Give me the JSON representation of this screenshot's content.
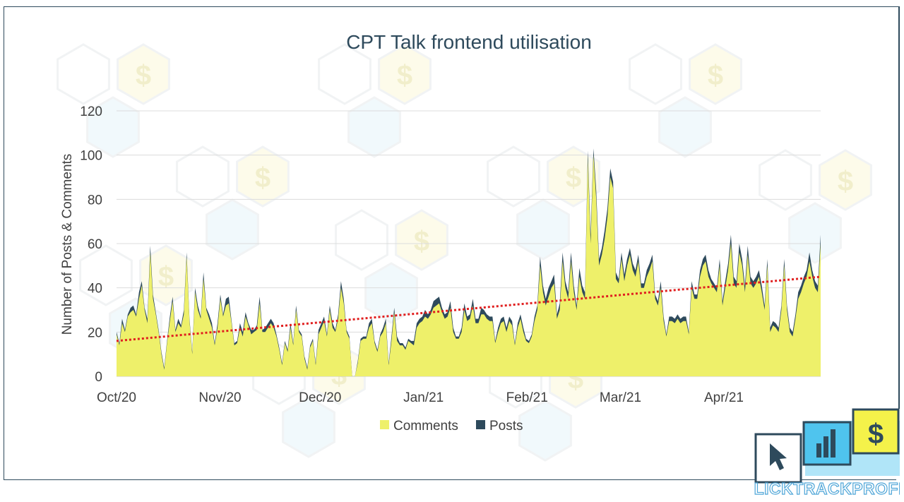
{
  "chart_data": {
    "type": "area",
    "title": "CPT Talk frontend utilisation",
    "ylabel": "Number of Posts & Comments",
    "xlabel": "",
    "ylim": [
      0,
      120
    ],
    "yticks": [
      0,
      20,
      40,
      60,
      80,
      100,
      120
    ],
    "xticks": [
      "Oct/20",
      "Nov/20",
      "Dec/20",
      "Jan/21",
      "Feb/21",
      "Mar/21",
      "Apr/21"
    ],
    "x_start": "2020-10-01",
    "x_end": "2021-04-30",
    "grid": true,
    "legend": "bottom",
    "stacked": true,
    "series": [
      {
        "name": "Comments",
        "color": "#eef06a",
        "values": [
          19,
          14,
          24,
          20,
          27,
          29,
          30,
          27,
          35,
          41,
          30,
          24,
          56,
          35,
          28,
          20,
          10,
          3,
          15,
          25,
          34,
          20,
          24,
          22,
          28,
          54,
          25,
          10,
          38,
          30,
          26,
          44,
          30,
          26,
          22,
          14,
          22,
          35,
          27,
          32,
          33,
          24,
          14,
          15,
          22,
          18,
          27,
          23,
          19,
          20,
          21,
          33,
          20,
          20,
          22,
          24,
          22,
          18,
          12,
          5,
          15,
          11,
          22,
          14,
          30,
          20,
          18,
          8,
          3,
          13,
          16,
          5,
          19,
          22,
          25,
          18,
          30,
          22,
          20,
          26,
          40,
          33,
          20,
          17,
          0,
          0,
          6,
          16,
          17,
          17,
          22,
          24,
          15,
          11,
          18,
          20,
          24,
          5,
          16,
          29,
          16,
          14,
          14,
          12,
          16,
          15,
          14,
          22,
          24,
          25,
          27,
          26,
          28,
          31,
          32,
          33,
          29,
          26,
          27,
          31,
          20,
          17,
          17,
          20,
          30,
          25,
          26,
          32,
          24,
          24,
          28,
          28,
          26,
          25,
          25,
          15,
          20,
          24,
          25,
          20,
          25,
          23,
          14,
          22,
          26,
          20,
          16,
          15,
          18,
          25,
          30,
          50,
          38,
          32,
          36,
          40,
          42,
          26,
          30,
          52,
          40,
          35,
          52,
          38,
          30,
          45,
          38,
          35,
          98,
          60,
          100,
          80,
          50,
          55,
          62,
          72,
          90,
          85,
          44,
          42,
          53,
          43,
          50,
          55,
          48,
          45,
          52,
          40,
          40,
          45,
          48,
          52,
          35,
          32,
          40,
          25,
          18,
          25,
          25,
          24,
          26,
          24,
          25,
          25,
          19,
          40,
          35,
          35,
          45,
          50,
          52,
          45,
          42,
          40,
          38,
          50,
          32,
          40,
          48,
          60,
          42,
          40,
          56,
          50,
          38,
          55,
          42,
          40,
          42,
          45,
          38,
          30,
          50,
          20,
          23,
          22,
          20,
          30,
          50,
          30,
          20,
          18,
          26,
          35,
          38,
          42,
          45,
          52,
          45,
          40,
          38,
          60
        ]
      },
      {
        "name": "Posts",
        "color": "#2e4a5c",
        "values": [
          1,
          1,
          2,
          1,
          1,
          2,
          2,
          1,
          3,
          2,
          1,
          2,
          3,
          2,
          1,
          1,
          1,
          1,
          1,
          2,
          2,
          1,
          2,
          1,
          2,
          2,
          1,
          1,
          2,
          2,
          1,
          3,
          1,
          2,
          2,
          1,
          2,
          2,
          1,
          3,
          3,
          1,
          1,
          1,
          2,
          2,
          2,
          1,
          2,
          1,
          2,
          3,
          1,
          2,
          2,
          2,
          2,
          1,
          1,
          1,
          1,
          1,
          2,
          1,
          2,
          1,
          1,
          1,
          1,
          1,
          1,
          1,
          2,
          2,
          2,
          1,
          2,
          2,
          1,
          2,
          3,
          2,
          1,
          1,
          0,
          0,
          1,
          1,
          1,
          1,
          2,
          2,
          1,
          1,
          1,
          2,
          2,
          1,
          2,
          2,
          2,
          1,
          1,
          1,
          1,
          1,
          2,
          2,
          2,
          2,
          3,
          2,
          2,
          3,
          3,
          3,
          2,
          2,
          2,
          3,
          2,
          1,
          1,
          2,
          3,
          2,
          2,
          3,
          2,
          2,
          3,
          2,
          2,
          2,
          2,
          1,
          2,
          2,
          2,
          2,
          2,
          2,
          1,
          2,
          2,
          2,
          1,
          1,
          1,
          2,
          2,
          4,
          3,
          3,
          4,
          3,
          4,
          2,
          3,
          4,
          3,
          3,
          4,
          3,
          2,
          4,
          3,
          3,
          4,
          4,
          3,
          4,
          3,
          3,
          4,
          4,
          4,
          3,
          3,
          2,
          3,
          3,
          3,
          3,
          3,
          3,
          3,
          2,
          2,
          3,
          3,
          3,
          2,
          2,
          3,
          2,
          1,
          2,
          2,
          2,
          2,
          2,
          2,
          2,
          1,
          3,
          2,
          2,
          3,
          3,
          3,
          3,
          2,
          2,
          2,
          3,
          2,
          3,
          3,
          4,
          3,
          3,
          4,
          3,
          3,
          4,
          3,
          3,
          3,
          3,
          3,
          2,
          3,
          2,
          2,
          2,
          2,
          2,
          3,
          2,
          2,
          2,
          2,
          3,
          3,
          3,
          3,
          4,
          3,
          3,
          3,
          4
        ]
      }
    ],
    "trendline": {
      "type": "linear",
      "color": "#e02020",
      "style": "dotted",
      "start_value": 16,
      "end_value": 45
    }
  },
  "logo": {
    "brand_text": "CLICKTRACKPROFIT",
    "dollar_glyph": "$"
  },
  "watermark": {
    "dollar_glyph": "$"
  }
}
